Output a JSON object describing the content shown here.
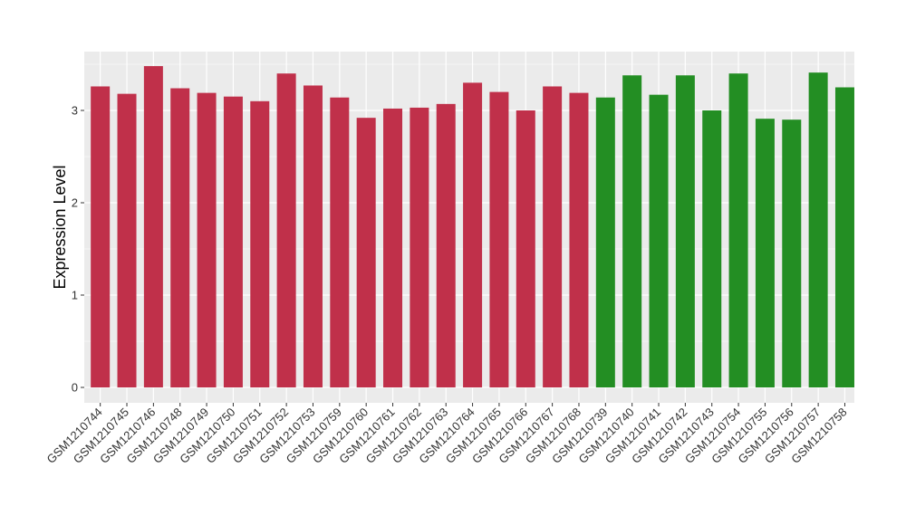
{
  "chart_data": {
    "type": "bar",
    "title": "",
    "xlabel": "",
    "ylabel": "Expression Level",
    "ylim": [
      0,
      3.55
    ],
    "yticks": [
      0,
      1,
      2,
      3
    ],
    "ytick_labels": [
      "0",
      "1",
      "2",
      "3"
    ],
    "grid": true,
    "legend": "none",
    "categories": [
      "GSM1210744",
      "GSM1210745",
      "GSM1210746",
      "GSM1210748",
      "GSM1210749",
      "GSM1210750",
      "GSM1210751",
      "GSM1210752",
      "GSM1210753",
      "GSM1210759",
      "GSM1210760",
      "GSM1210761",
      "GSM1210762",
      "GSM1210763",
      "GSM1210764",
      "GSM1210765",
      "GSM1210766",
      "GSM1210767",
      "GSM1210768",
      "GSM1210739",
      "GSM1210740",
      "GSM1210741",
      "GSM1210742",
      "GSM1210743",
      "GSM1210754",
      "GSM1210755",
      "GSM1210756",
      "GSM1210757",
      "GSM1210758"
    ],
    "values": [
      3.26,
      3.18,
      3.48,
      3.24,
      3.19,
      3.15,
      3.1,
      3.4,
      3.27,
      3.14,
      2.92,
      3.02,
      3.03,
      3.07,
      3.3,
      3.2,
      3.0,
      3.26,
      3.19,
      3.14,
      3.38,
      3.17,
      3.38,
      3.0,
      3.4,
      2.91,
      2.9,
      3.41,
      3.25
    ],
    "bar_colors": [
      "#C0304A",
      "#C0304A",
      "#C0304A",
      "#C0304A",
      "#C0304A",
      "#C0304A",
      "#C0304A",
      "#C0304A",
      "#C0304A",
      "#C0304A",
      "#C0304A",
      "#C0304A",
      "#C0304A",
      "#C0304A",
      "#C0304A",
      "#C0304A",
      "#C0304A",
      "#C0304A",
      "#C0304A",
      "#238E23",
      "#238E23",
      "#238E23",
      "#238E23",
      "#238E23",
      "#238E23",
      "#238E23",
      "#238E23",
      "#238E23",
      "#238E23"
    ],
    "panel_background": "#EBEBEB",
    "grid_color": "#FFFFFF"
  }
}
